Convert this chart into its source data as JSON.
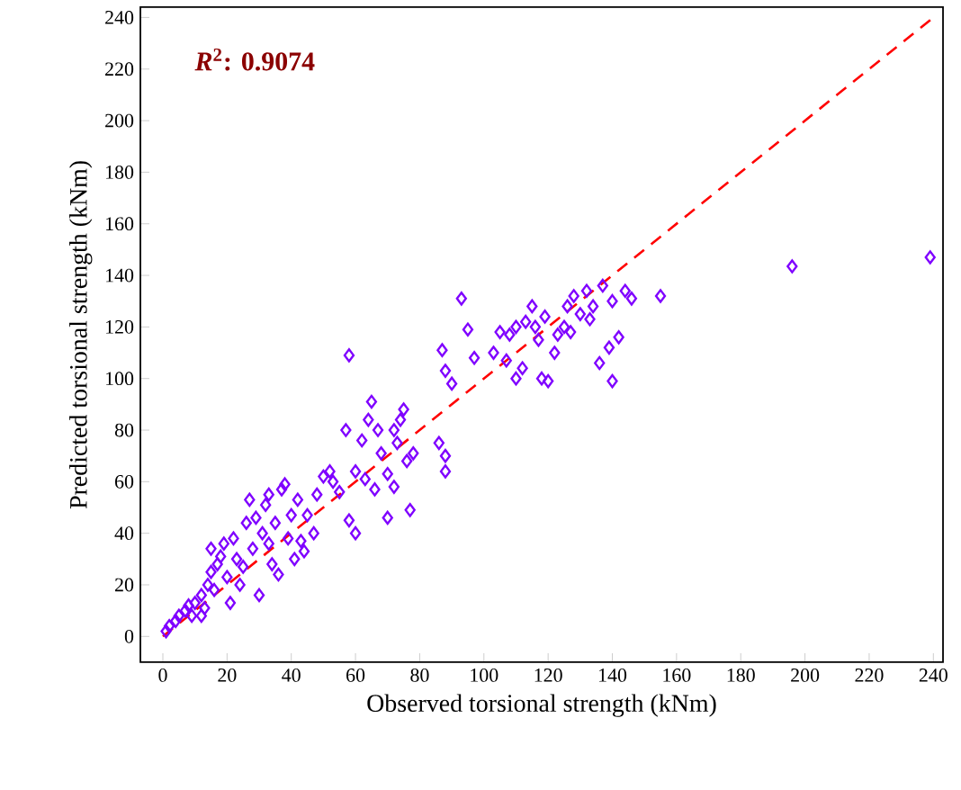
{
  "chart_data": {
    "type": "scatter",
    "xlabel": "Observed torsional strength (kNm)",
    "ylabel": "Predicted torsional strength (kNm)",
    "annotations": [
      "*R*$^{2}$: 0.9074"
    ],
    "xlim": [
      -7,
      243
    ],
    "ylim": [
      -10,
      244
    ],
    "xticks": [
      0,
      20,
      40,
      60,
      80,
      100,
      120,
      140,
      160,
      180,
      200,
      220,
      240
    ],
    "yticks": [
      0,
      20,
      40,
      60,
      80,
      100,
      120,
      140,
      160,
      180,
      200,
      220,
      240
    ],
    "marker": "diamond",
    "series": [
      {
        "color": "#7f00ff",
        "x": [
          93,
          95,
          97,
          87,
          88,
          90,
          103,
          105,
          107,
          110,
          110,
          113,
          115,
          117,
          118,
          119,
          120,
          122,
          123,
          125,
          126,
          128,
          130,
          132,
          134,
          136,
          137,
          139,
          140,
          140,
          142,
          144,
          146,
          155,
          133,
          127,
          108,
          112,
          116,
          196,
          239,
          58,
          57,
          62,
          64,
          65,
          67,
          68,
          70,
          72,
          73,
          74,
          75,
          76,
          78,
          77,
          70,
          66,
          63,
          60,
          58,
          55,
          53,
          52,
          50,
          60,
          48,
          47,
          45,
          43,
          86,
          88,
          88,
          72,
          1,
          2,
          4,
          5,
          7,
          9,
          10,
          12,
          13,
          14,
          15,
          15,
          16,
          17,
          18,
          19,
          20,
          21,
          22,
          23,
          25,
          26,
          27,
          28,
          30,
          31,
          32,
          33,
          34,
          35,
          36,
          37,
          38,
          39,
          40,
          41,
          42,
          44,
          12,
          8,
          24,
          29,
          33
        ],
        "values": [
          131,
          119,
          108,
          111,
          103,
          98,
          110,
          118,
          107,
          100,
          120,
          122,
          128,
          115,
          100,
          124,
          99,
          110,
          117,
          120,
          128,
          132,
          125,
          134,
          128,
          106,
          136,
          112,
          99,
          130,
          116,
          134,
          131,
          132,
          123,
          118,
          117,
          104,
          120,
          143.5,
          147,
          109,
          80,
          76,
          84,
          91,
          80,
          71,
          63,
          80,
          75,
          84,
          88,
          68,
          71,
          49,
          46,
          57,
          61,
          64,
          45,
          56,
          60,
          64,
          62,
          40,
          55,
          40,
          47,
          37,
          75,
          70,
          64,
          58,
          2,
          4,
          6,
          8,
          10,
          8,
          13,
          16,
          11,
          20,
          34,
          25,
          18,
          28,
          31,
          36,
          23,
          13,
          38,
          30,
          27,
          44,
          53,
          34,
          16,
          40,
          51,
          36,
          28,
          44,
          24,
          57,
          59,
          38,
          47,
          30,
          53,
          33,
          8,
          12,
          20,
          46,
          55
        ]
      },
      {
        "type": "line",
        "color": "#ff0000",
        "line_style": "dashed",
        "marker": "none",
        "x": [
          0,
          240
        ],
        "values": [
          0,
          240
        ]
      }
    ]
  }
}
